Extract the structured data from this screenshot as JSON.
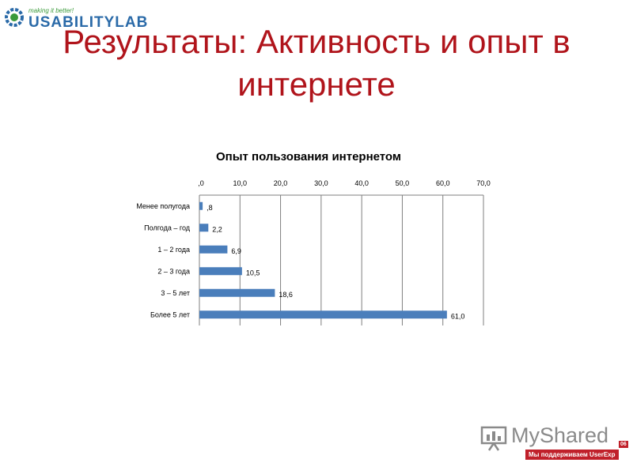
{
  "header": {
    "logo_tagline": "making it better!",
    "logo_text": "USABILITYLAB",
    "title": "Результаты: Активность и опыт в интернете"
  },
  "colors": {
    "title": "#b0141b",
    "bar": "#4a7ebb",
    "grid": "#7f7f7f"
  },
  "chart_data": {
    "type": "bar",
    "orientation": "horizontal",
    "title": "Опыт пользования интернетом",
    "categories": [
      "Менее полугода",
      "Полгода – год",
      "1 – 2 года",
      "2 – 3 года",
      "3 – 5 лет",
      "Более 5 лет"
    ],
    "values": [
      0.8,
      2.2,
      6.9,
      10.5,
      18.6,
      61.0
    ],
    "value_labels": [
      ",8",
      "2,2",
      "6,9",
      "10,5",
      "18,6",
      "61,0"
    ],
    "xlim": [
      0,
      70
    ],
    "x_ticks": [
      ",0",
      "10,0",
      "20,0",
      "30,0",
      "40,0",
      "50,0",
      "60,0",
      "70,0"
    ],
    "x_axis_position": "top",
    "grid": true,
    "legend": "none"
  },
  "watermark": {
    "text": "MyShared",
    "badge": "Мы поддерживаем UserExp",
    "number": "06"
  }
}
